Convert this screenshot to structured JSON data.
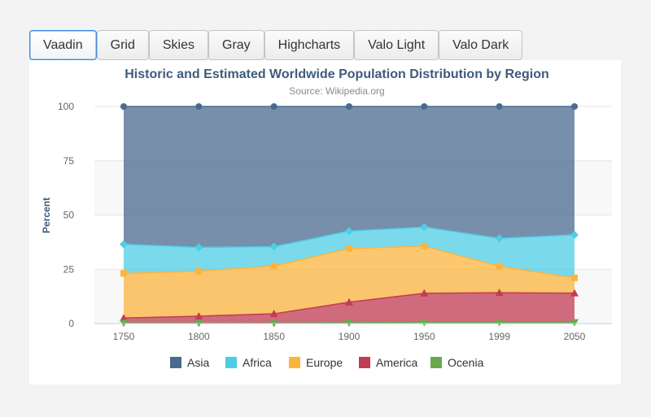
{
  "tabs": [
    {
      "label": "Vaadin",
      "active": true
    },
    {
      "label": "Grid",
      "active": false
    },
    {
      "label": "Skies",
      "active": false
    },
    {
      "label": "Gray",
      "active": false
    },
    {
      "label": "Highcharts",
      "active": false
    },
    {
      "label": "Valo Light",
      "active": false
    },
    {
      "label": "Valo Dark",
      "active": false
    }
  ],
  "chart_data": {
    "type": "area",
    "stacking": "percent",
    "title": "Historic and Estimated Worldwide Population Distribution by Region",
    "subtitle": "Source: Wikipedia.org",
    "xlabel": "",
    "ylabel": "Percent",
    "categories": [
      "1750",
      "1800",
      "1850",
      "1900",
      "1950",
      "1999",
      "2050"
    ],
    "ylim": [
      0,
      100
    ],
    "yticks": [
      0,
      25,
      50,
      75,
      100
    ],
    "grid": true,
    "legend_position": "bottom-center",
    "series": [
      {
        "name": "Asia",
        "color": "#4a6a8e",
        "marker": "circle",
        "values": [
          502,
          635,
          809,
          947,
          1402,
          3634,
          5268
        ]
      },
      {
        "name": "Africa",
        "color": "#4dcde6",
        "marker": "diamond",
        "values": [
          106,
          107,
          111,
          133,
          221,
          767,
          1766
        ]
      },
      {
        "name": "Europe",
        "color": "#fbb43e",
        "marker": "square",
        "values": [
          163,
          203,
          276,
          408,
          547,
          729,
          628
        ]
      },
      {
        "name": "America",
        "color": "#c23c53",
        "marker": "triangle",
        "values": [
          18,
          31,
          54,
          156,
          339,
          818,
          1201
        ]
      },
      {
        "name": "Ocenia",
        "color": "#6aa84f",
        "marker": "triangle-down",
        "values": [
          2,
          2,
          2,
          6,
          13,
          30,
          46
        ]
      }
    ]
  }
}
